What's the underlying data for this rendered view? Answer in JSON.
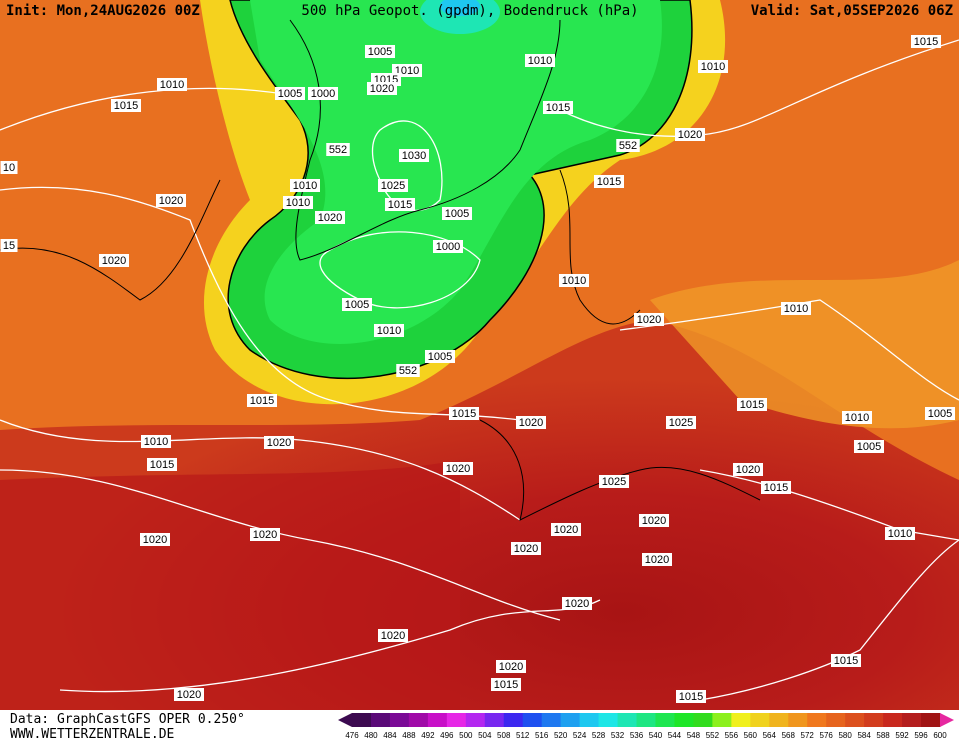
{
  "header": {
    "init": "Init: Mon,24AUG2026 00Z",
    "title": "500 hPa Geopot. (gpdm), Bodendruck (hPa)",
    "valid": "Valid: Sat,05SEP2026 06Z"
  },
  "footer": {
    "source": "Data: GraphCastGFS OPER 0.250°",
    "site": "WWW.WETTERZENTRALE.DE"
  },
  "isobar_labels": [
    "1015",
    "1010",
    "1010",
    "1005",
    "1010",
    "1015",
    "1020",
    "1005",
    "1000",
    "1010",
    "1015",
    "1015",
    "1020",
    "552",
    "552",
    "1030",
    "1015",
    "1010",
    "1025",
    "1010",
    "1015",
    "1020",
    "1005",
    "1020",
    "1000",
    "1020",
    "1005",
    "1010",
    "1010",
    "1020",
    "1010",
    "1005",
    "552",
    "1015",
    "1015",
    "1015",
    "1020",
    "1025",
    "1010",
    "1005",
    "1010",
    "1020",
    "1005",
    "1015",
    "1020",
    "1020",
    "1015",
    "1025",
    "1020",
    "1020",
    "1020",
    "1020",
    "1020",
    "1020",
    "1010",
    "1020",
    "1020",
    "1015",
    "1020",
    "1015",
    "1020",
    "1015",
    "10",
    "15"
  ],
  "legend": {
    "levels": [
      476,
      480,
      484,
      488,
      492,
      496,
      500,
      504,
      508,
      512,
      516,
      520,
      524,
      528,
      532,
      536,
      540,
      544,
      548,
      552,
      556,
      560,
      564,
      568,
      572,
      576,
      580,
      584,
      588,
      592,
      596,
      600
    ],
    "colors": [
      "#3c0a50",
      "#5a0a78",
      "#7a0a96",
      "#a00aa8",
      "#c810c8",
      "#e628e6",
      "#b428f0",
      "#7828f0",
      "#3c28f0",
      "#1e50f0",
      "#1e78f0",
      "#1ea0f0",
      "#1ec8f0",
      "#1ee6e6",
      "#1ee6b4",
      "#1ee682",
      "#1ee650",
      "#1ee628",
      "#32dc1e",
      "#8cf01e",
      "#f0f01e",
      "#f0d21e",
      "#f0b41e",
      "#f0961e",
      "#f0781e",
      "#e6641e",
      "#dc501e",
      "#d23c1e",
      "#c8281e",
      "#b41e1e",
      "#a01414",
      "#e628a0"
    ]
  }
}
